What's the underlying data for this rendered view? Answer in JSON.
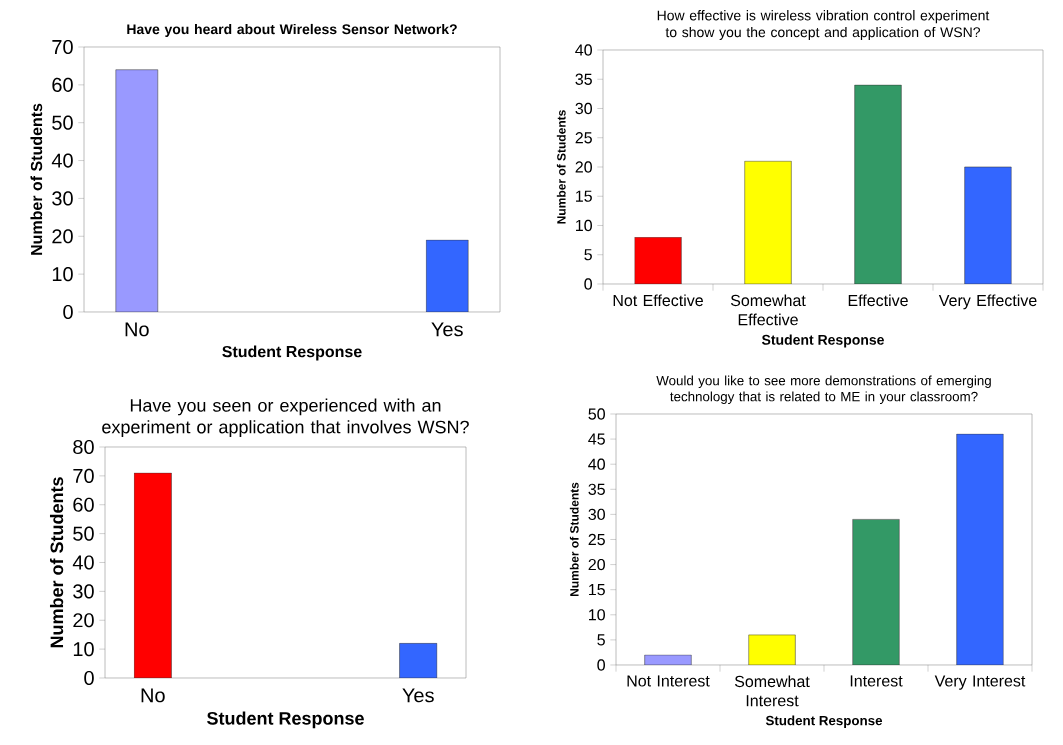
{
  "chart_data": [
    {
      "type": "bar",
      "title": "Have you heard about Wireless Sensor Network?",
      "xlabel": "Student Response",
      "ylabel": "Number of Students",
      "categories": [
        "No",
        "Yes"
      ],
      "values": [
        64,
        19
      ],
      "colors": [
        "#9999ff",
        "#3366ff"
      ],
      "ylim": [
        0,
        70
      ],
      "yticks": [
        0,
        10,
        20,
        30,
        40,
        50,
        60,
        70
      ]
    },
    {
      "type": "bar",
      "title": "How effective is wireless vibration control experiment to show you the concept and application of WSN?",
      "xlabel": "Student Response",
      "ylabel": "Number of Students",
      "categories": [
        "Not Effective",
        "Somewhat Effective",
        "Effective",
        "Very Effective"
      ],
      "values": [
        8,
        21,
        34,
        20
      ],
      "colors": [
        "#ff0000",
        "#ffff00",
        "#339966",
        "#3366ff"
      ],
      "ylim": [
        0,
        40
      ],
      "yticks": [
        0,
        5,
        10,
        15,
        20,
        25,
        30,
        35,
        40
      ]
    },
    {
      "type": "bar",
      "title": "Have you seen or experienced with an experiment or application that involves WSN?",
      "xlabel": "Student Response",
      "ylabel": "Number of Students",
      "categories": [
        "No",
        "Yes"
      ],
      "values": [
        71,
        12
      ],
      "colors": [
        "#ff0000",
        "#3366ff"
      ],
      "ylim": [
        0,
        80
      ],
      "yticks": [
        0,
        10,
        20,
        30,
        40,
        50,
        60,
        70,
        80
      ]
    },
    {
      "type": "bar",
      "title": "Would you like to see more demonstrations of emerging technology that is related to ME in your classroom?",
      "xlabel": "Student Response",
      "ylabel": "Number of Students",
      "categories": [
        "Not Interest",
        "Somewhat Interest",
        "Interest",
        "Very Interest"
      ],
      "values": [
        2,
        6,
        29,
        46
      ],
      "colors": [
        "#9999ff",
        "#ffff00",
        "#339966",
        "#3366ff"
      ],
      "ylim": [
        0,
        50
      ],
      "yticks": [
        0,
        5,
        10,
        15,
        20,
        25,
        30,
        35,
        40,
        45,
        50
      ]
    }
  ]
}
